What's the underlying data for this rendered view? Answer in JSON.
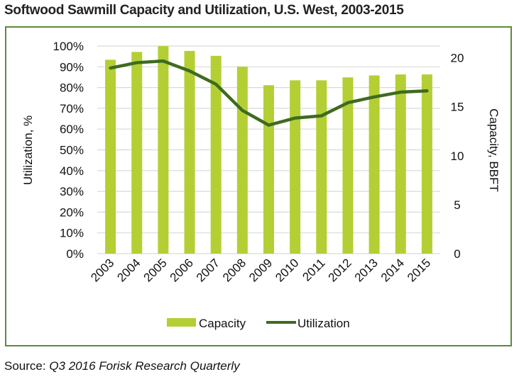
{
  "title": "Softwood Sawmill Capacity and Utilization, U.S. West, 2003-2015",
  "source_label": "Source: ",
  "source_text": "Q3 2016 Forisk Research Quarterly",
  "chart_data": {
    "type": "bar+line",
    "title": "Softwood Sawmill Capacity and Utilization, U.S. West, 2003-2015",
    "categories": [
      "2003",
      "2004",
      "2005",
      "2006",
      "2007",
      "2008",
      "2009",
      "2010",
      "2011",
      "2012",
      "2013",
      "2014",
      "2015"
    ],
    "series": [
      {
        "name": "Capacity",
        "type": "bar",
        "axis": "right",
        "color": "#b3cf34",
        "values": [
          19.8,
          20.6,
          21.2,
          20.7,
          20.2,
          19.1,
          17.2,
          17.7,
          17.7,
          18.0,
          18.2,
          18.3,
          18.3
        ]
      },
      {
        "name": "Utilization",
        "type": "line",
        "axis": "left",
        "color": "#3f6b1f",
        "values": [
          89.4,
          92.0,
          92.8,
          88.0,
          81.6,
          69.0,
          61.9,
          65.3,
          66.4,
          72.7,
          75.5,
          77.8,
          78.4
        ]
      }
    ],
    "ylabel_left": "Utilization, %",
    "ylabel_right": "Capacity, BBFT",
    "ylim_left": [
      0,
      100
    ],
    "ylim_right": [
      0,
      21.2
    ],
    "yticks_left": [
      "0%",
      "10%",
      "20%",
      "30%",
      "40%",
      "50%",
      "60%",
      "70%",
      "80%",
      "90%",
      "100%"
    ],
    "yticks_right": [
      "0",
      "5",
      "10",
      "15",
      "20"
    ],
    "grid": true,
    "legend": "bottom"
  }
}
